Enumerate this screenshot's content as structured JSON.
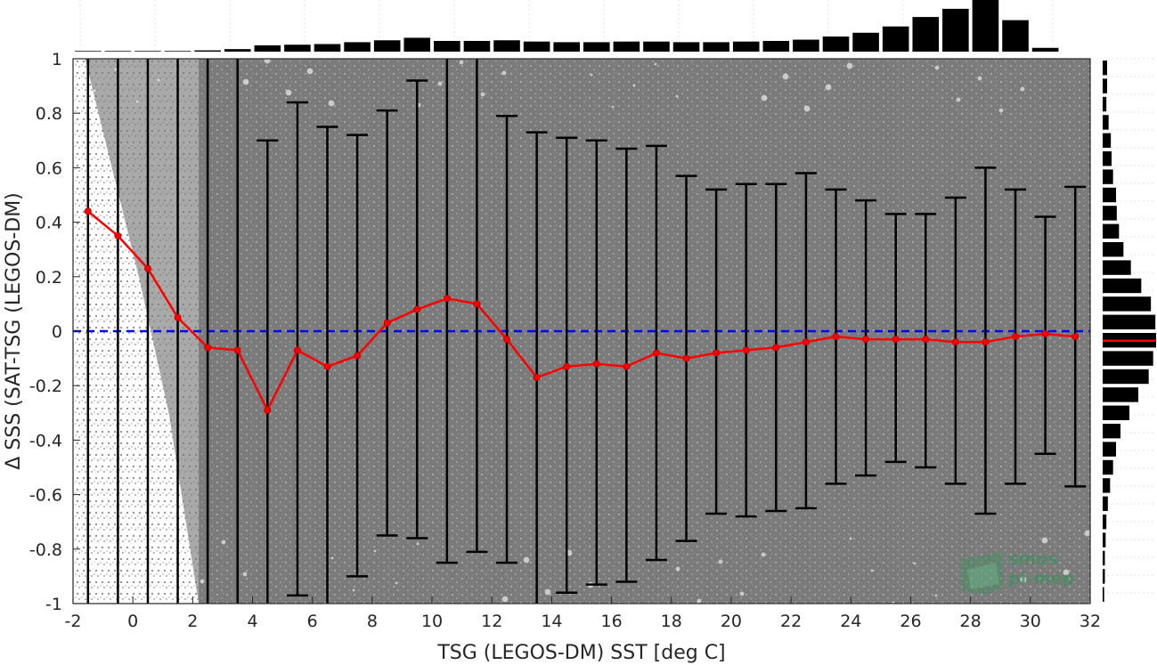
{
  "chart_data": {
    "type": "scatter",
    "xlabel": "TSG (LEGOS-DM) SST [deg C]",
    "ylabel": "Δ SSS (SAT-TSG (LEGOS-DM)",
    "xlim": [
      -2,
      32
    ],
    "ylim": [
      -1,
      1
    ],
    "xticks": [
      "-2",
      "0",
      "2",
      "4",
      "6",
      "8",
      "10",
      "12",
      "14",
      "16",
      "18",
      "20",
      "22",
      "24",
      "26",
      "28",
      "30",
      "32"
    ],
    "yticks": [
      "-1",
      "-0.8",
      "-0.6",
      "-0.4",
      "-0.2",
      "0",
      "0.2",
      "0.4",
      "0.6",
      "0.8",
      "1"
    ],
    "grid": false,
    "reference_line": {
      "y": 0,
      "color": "#0000ff",
      "style": "dashed"
    },
    "scatter_color": "#808080",
    "series": [
      {
        "color": "#ff0000",
        "x": [
          -1.5,
          -0.5,
          0.5,
          1.5,
          2.5,
          3.5,
          4.5,
          5.5,
          6.5,
          7.5,
          8.5,
          9.5,
          10.5,
          11.5,
          12.5,
          13.5,
          14.5,
          15.5,
          16.5,
          17.5,
          18.5,
          19.5,
          20.5,
          21.5,
          22.5,
          23.5,
          24.5,
          25.5,
          26.5,
          27.5,
          28.5,
          29.5,
          30.5,
          31.5
        ],
        "y": [
          0.44,
          0.35,
          0.23,
          0.05,
          -0.06,
          -0.07,
          -0.29,
          -0.07,
          -0.13,
          -0.09,
          0.03,
          0.08,
          0.12,
          0.1,
          -0.03,
          -0.17,
          -0.13,
          -0.12,
          -0.13,
          -0.08,
          -0.1,
          -0.08,
          -0.07,
          -0.06,
          -0.04,
          -0.02,
          -0.03,
          -0.03,
          -0.03,
          -0.04,
          -0.04,
          -0.02,
          -0.01,
          -0.02
        ]
      }
    ],
    "error_bars": {
      "color": "#000000",
      "upper": [
        1,
        1,
        1,
        1,
        1,
        1,
        0.7,
        0.84,
        0.75,
        0.72,
        0.81,
        0.92,
        1,
        1,
        0.79,
        0.73,
        0.71,
        0.7,
        0.67,
        0.68,
        0.57,
        0.52,
        0.54,
        0.54,
        0.58,
        0.52,
        0.48,
        0.43,
        0.43,
        0.49,
        0.6,
        0.52,
        0.42,
        0.53
      ],
      "lower": [
        -1,
        -1,
        -1,
        -1,
        -1,
        -1,
        -1,
        -0.97,
        -1,
        -0.9,
        -0.75,
        -0.76,
        -0.85,
        -0.81,
        -0.85,
        -1,
        -0.96,
        -0.93,
        -0.92,
        -0.84,
        -0.77,
        -0.67,
        -0.68,
        -0.66,
        -0.65,
        -0.56,
        -0.53,
        -0.48,
        -0.5,
        -0.56,
        -0.67,
        -0.56,
        -0.45,
        -0.57
      ]
    },
    "top_histogram": {
      "color": "#000000",
      "values": [
        0.01,
        0.01,
        0.01,
        0.01,
        0.02,
        0.04,
        0.1,
        0.11,
        0.12,
        0.15,
        0.18,
        0.22,
        0.17,
        0.17,
        0.18,
        0.16,
        0.15,
        0.15,
        0.16,
        0.16,
        0.15,
        0.15,
        0.16,
        0.17,
        0.19,
        0.24,
        0.3,
        0.4,
        0.55,
        0.68,
        0.82,
        0.5,
        0.06
      ]
    },
    "right_histogram": {
      "color": "#000000",
      "median_color": "#ff0000",
      "median_y": -0.035,
      "values": [
        0.06,
        0.06,
        0.05,
        0.08,
        0.11,
        0.12,
        0.14,
        0.18,
        0.19,
        0.22,
        0.28,
        0.38,
        0.52,
        0.65,
        0.71,
        0.72,
        0.68,
        0.62,
        0.48,
        0.36,
        0.24,
        0.18,
        0.14,
        0.1,
        0.07,
        0.05,
        0.04,
        0.03,
        0.03,
        0.02
      ]
    }
  },
  "watermark": {
    "line1": "smos",
    "line2": "pi-mep"
  }
}
